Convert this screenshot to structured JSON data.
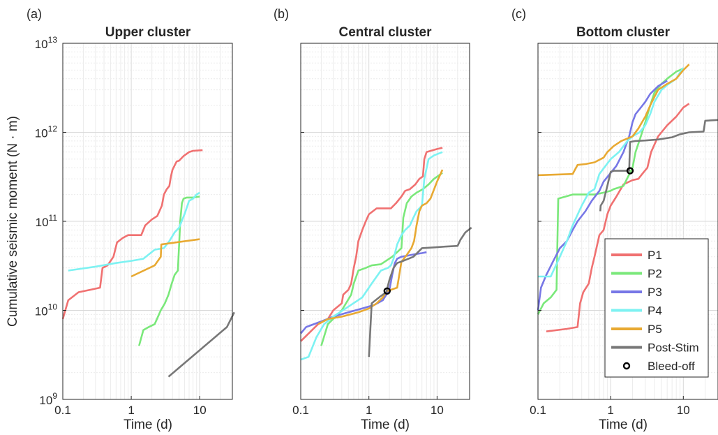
{
  "figure": {
    "ylabel": "Cumulative seismic moment (N · m)"
  },
  "colors": {
    "P1": "#f07171",
    "P2": "#7ae87a",
    "P3": "#7777e6",
    "P4": "#7df2f2",
    "P5": "#e8a932",
    "Post-Stim": "#777777"
  },
  "legend": {
    "position": "bottom-right of panel (c)",
    "items": [
      "P1",
      "P2",
      "P3",
      "P4",
      "P5",
      "Post-Stim",
      "Bleed-off"
    ]
  },
  "chart_data": [
    {
      "type": "line",
      "panel_label": "(a)",
      "title": "Upper cluster",
      "xlabel": "Time (d)",
      "ylabel": "Cumulative seismic moment (N · m)",
      "xscale": "log",
      "yscale": "log",
      "xlim": [
        0.1,
        30
      ],
      "ylim": [
        1000000000.0,
        10000000000000.0
      ],
      "x_ticks": [
        "0.1",
        "1",
        "10"
      ],
      "y_ticks": [
        "10^9",
        "10^10",
        "10^11",
        "10^12",
        "10^13"
      ],
      "grid": true,
      "series": [
        {
          "name": "P1",
          "x": [
            0.1,
            0.12,
            0.17,
            0.25,
            0.35,
            0.38,
            0.45,
            0.55,
            0.62,
            0.75,
            0.9,
            1.4,
            1.6,
            2.0,
            2.4,
            2.8,
            3.0,
            3.3,
            3.6,
            3.8,
            4.0,
            4.6,
            5.0,
            5.8,
            7.0,
            8.0,
            11.0
          ],
          "y": [
            8000000000.0,
            13000000000.0,
            16000000000.0,
            17000000000.0,
            18000000000.0,
            30000000000.0,
            32000000000.0,
            40000000000.0,
            58000000000.0,
            65000000000.0,
            70000000000.0,
            70000000000.0,
            90000000000.0,
            105000000000.0,
            115000000000.0,
            150000000000.0,
            200000000000.0,
            230000000000.0,
            250000000000.0,
            320000000000.0,
            380000000000.0,
            470000000000.0,
            480000000000.0,
            540000000000.0,
            600000000000.0,
            620000000000.0,
            630000000000.0
          ]
        },
        {
          "name": "P2",
          "x": [
            1.3,
            1.5,
            1.8,
            2.2,
            2.7,
            3.1,
            3.5,
            3.9,
            4.3,
            4.8,
            5.2,
            5.5,
            5.8,
            6.5,
            8.0,
            10.0
          ],
          "y": [
            4000000000.0,
            6000000000.0,
            6500000000.0,
            7000000000.0,
            10000000000.0,
            12000000000.0,
            15000000000.0,
            20000000000.0,
            25000000000.0,
            28000000000.0,
            100000000000.0,
            160000000000.0,
            180000000000.0,
            185000000000.0,
            185000000000.0,
            190000000000.0
          ]
        },
        {
          "name": "P4",
          "x": [
            0.12,
            0.3,
            0.6,
            1.0,
            1.5,
            2.2,
            3.0,
            3.6,
            4.3,
            5.0,
            6.0,
            7.0,
            8.0,
            9.0,
            10.0
          ],
          "y": [
            28000000000.0,
            31000000000.0,
            34000000000.0,
            36000000000.0,
            38000000000.0,
            48000000000.0,
            50000000000.0,
            60000000000.0,
            75000000000.0,
            85000000000.0,
            120000000000.0,
            170000000000.0,
            180000000000.0,
            200000000000.0,
            210000000000.0
          ]
        },
        {
          "name": "P5",
          "x": [
            1.0,
            2.2,
            2.7,
            2.75,
            10.0
          ],
          "y": [
            24000000000.0,
            32000000000.0,
            40000000000.0,
            55000000000.0,
            63000000000.0
          ]
        },
        {
          "name": "Post-Stim",
          "x": [
            3.5,
            25.0,
            32.0
          ],
          "y": [
            1800000000.0,
            6500000000.0,
            9500000000.0
          ]
        }
      ]
    },
    {
      "type": "line",
      "panel_label": "(b)",
      "title": "Central cluster",
      "xlabel": "Time (d)",
      "xscale": "log",
      "yscale": "log",
      "xlim": [
        0.1,
        30
      ],
      "ylim": [
        1000000000.0,
        10000000000000.0
      ],
      "x_ticks": [
        "0.1",
        "1",
        "10"
      ],
      "grid": true,
      "series": [
        {
          "name": "P1",
          "x": [
            0.1,
            0.18,
            0.25,
            0.3,
            0.4,
            0.42,
            0.5,
            0.55,
            0.6,
            0.65,
            0.7,
            0.8,
            0.9,
            1.0,
            1.3,
            2.1,
            2.5,
            3.0,
            3.4,
            4.0,
            4.8,
            5.5,
            6.2,
            6.5,
            7.0,
            10.0,
            12.0
          ],
          "y": [
            4500000000.0,
            7000000000.0,
            8000000000.0,
            10000000000.0,
            12000000000.0,
            15000000000.0,
            17000000000.0,
            20000000000.0,
            30000000000.0,
            40000000000.0,
            60000000000.0,
            80000000000.0,
            100000000000.0,
            120000000000.0,
            140000000000.0,
            140000000000.0,
            160000000000.0,
            190000000000.0,
            220000000000.0,
            230000000000.0,
            260000000000.0,
            300000000000.0,
            320000000000.0,
            500000000000.0,
            600000000000.0,
            650000000000.0,
            670000000000.0
          ]
        },
        {
          "name": "P2",
          "x": [
            0.2,
            0.25,
            0.35,
            0.4,
            0.55,
            0.6,
            0.7,
            0.9,
            1.1,
            1.5,
            2.2,
            3.0,
            3.2,
            3.6,
            4.2,
            5.0,
            6.2,
            7.5,
            9.0,
            12.0
          ],
          "y": [
            4000000000.0,
            7000000000.0,
            9000000000.0,
            10000000000.0,
            15000000000.0,
            20000000000.0,
            28000000000.0,
            30000000000.0,
            32000000000.0,
            33000000000.0,
            40000000000.0,
            50000000000.0,
            110000000000.0,
            160000000000.0,
            190000000000.0,
            210000000000.0,
            230000000000.0,
            260000000000.0,
            300000000000.0,
            350000000000.0
          ]
        },
        {
          "name": "P3",
          "x": [
            0.1,
            0.12,
            0.2,
            0.3,
            0.5,
            0.8,
            1.2,
            1.6,
            2.0,
            2.2,
            2.4,
            2.6,
            3.0,
            3.6,
            4.2,
            5.0,
            6.0,
            7.0
          ],
          "y": [
            5500000000.0,
            6500000000.0,
            7500000000.0,
            8500000000.0,
            9500000000.0,
            10500000000.0,
            11500000000.0,
            13000000000.0,
            17000000000.0,
            25000000000.0,
            34000000000.0,
            38000000000.0,
            40000000000.0,
            41000000000.0,
            42000000000.0,
            43000000000.0,
            44000000000.0,
            45000000000.0
          ]
        },
        {
          "name": "P4",
          "x": [
            0.1,
            0.13,
            0.17,
            0.22,
            0.3,
            0.5,
            0.8,
            1.1,
            1.5,
            1.9,
            2.1,
            2.3,
            2.6,
            3.0,
            3.4,
            4.0,
            4.5,
            5.0,
            5.5,
            6.0,
            6.5,
            7.5,
            9.0,
            12.0
          ],
          "y": [
            2800000000.0,
            3000000000.0,
            5000000000.0,
            7000000000.0,
            8500000000.0,
            11000000000.0,
            14000000000.0,
            20000000000.0,
            28000000000.0,
            30000000000.0,
            32000000000.0,
            38000000000.0,
            55000000000.0,
            70000000000.0,
            80000000000.0,
            90000000000.0,
            110000000000.0,
            130000000000.0,
            140000000000.0,
            150000000000.0,
            300000000000.0,
            500000000000.0,
            550000000000.0,
            600000000000.0
          ]
        },
        {
          "name": "P5",
          "x": [
            0.18,
            0.25,
            0.4,
            0.7,
            1.0,
            1.3,
            1.6,
            1.8,
            1.85,
            2.6,
            3.0,
            3.6,
            4.2,
            4.6,
            5.0,
            5.5,
            6.0,
            7.0,
            8.0,
            10.0,
            12.0
          ],
          "y": [
            7000000000.0,
            8000000000.0,
            8500000000.0,
            9500000000.0,
            10500000000.0,
            12000000000.0,
            14000000000.0,
            16000000000.0,
            16500000000.0,
            18000000000.0,
            35000000000.0,
            42000000000.0,
            50000000000.0,
            60000000000.0,
            90000000000.0,
            130000000000.0,
            150000000000.0,
            160000000000.0,
            180000000000.0,
            280000000000.0,
            380000000000.0
          ]
        },
        {
          "name": "Post-Stim",
          "x": [
            1.0,
            1.1,
            1.5,
            1.8,
            2.0,
            2.3,
            2.6,
            3.2,
            4.5,
            6.0,
            9.0,
            13.0,
            20.0,
            22.0,
            26.0,
            32.0
          ],
          "y": [
            3000000000.0,
            12000000000.0,
            14500000000.0,
            16000000000.0,
            22000000000.0,
            30000000000.0,
            34000000000.0,
            36000000000.0,
            40000000000.0,
            50000000000.0,
            51000000000.0,
            52000000000.0,
            53000000000.0,
            62000000000.0,
            75000000000.0,
            85000000000.0
          ]
        }
      ],
      "markers": [
        {
          "name": "Bleed-off",
          "x": 1.85,
          "y": 16500000000.0
        }
      ]
    },
    {
      "type": "line",
      "panel_label": "(c)",
      "title": "Bottom cluster",
      "xlabel": "Time (d)",
      "xscale": "log",
      "yscale": "log",
      "xlim": [
        0.1,
        30
      ],
      "ylim": [
        1000000000.0,
        10000000000000.0
      ],
      "x_ticks": [
        "0.1",
        "1",
        "10"
      ],
      "grid": true,
      "series": [
        {
          "name": "P1",
          "x": [
            0.13,
            0.25,
            0.35,
            0.38,
            0.42,
            0.5,
            0.55,
            0.6,
            0.7,
            0.8,
            0.9,
            1.0,
            1.2,
            1.5,
            2.0,
            2.4,
            2.8,
            3.2,
            3.6,
            4.5,
            6.0,
            8.0,
            10.0,
            12.0
          ],
          "y": [
            5800000000.0,
            6200000000.0,
            6500000000.0,
            12000000000.0,
            16000000000.0,
            20000000000.0,
            30000000000.0,
            40000000000.0,
            70000000000.0,
            80000000000.0,
            120000000000.0,
            150000000000.0,
            190000000000.0,
            260000000000.0,
            290000000000.0,
            300000000000.0,
            350000000000.0,
            400000000000.0,
            600000000000.0,
            900000000000.0,
            1200000000000.0,
            1500000000000.0,
            1900000000000.0,
            2100000000000.0
          ]
        },
        {
          "name": "P2",
          "x": [
            0.1,
            0.12,
            0.15,
            0.18,
            0.19,
            0.3,
            0.6,
            0.8,
            1.0,
            1.1,
            1.3,
            1.5,
            2.0,
            2.2,
            2.6,
            3.0,
            3.5,
            4.0,
            5.0,
            6.0,
            8.0,
            10.0
          ],
          "y": [
            9000000000.0,
            12000000000.0,
            14000000000.0,
            17000000000.0,
            180000000000.0,
            200000000000.0,
            200000000000.0,
            210000000000.0,
            220000000000.0,
            230000000000.0,
            240000000000.0,
            250000000000.0,
            400000000000.0,
            600000000000.0,
            900000000000.0,
            1300000000000.0,
            2000000000000.0,
            2800000000000.0,
            3500000000000.0,
            4000000000000.0,
            4800000000000.0,
            5200000000000.0
          ]
        },
        {
          "name": "P3",
          "x": [
            0.1,
            0.11,
            0.13,
            0.16,
            0.2,
            0.25,
            0.3,
            0.35,
            0.45,
            0.55,
            0.7,
            0.8,
            1.0,
            1.2,
            1.5,
            1.8,
            2.0,
            2.2,
            2.6,
            3.0,
            3.5,
            4.5,
            6.0
          ],
          "y": [
            10000000000.0,
            18000000000.0,
            25000000000.0,
            35000000000.0,
            50000000000.0,
            60000000000.0,
            80000000000.0,
            100000000000.0,
            130000000000.0,
            170000000000.0,
            220000000000.0,
            280000000000.0,
            350000000000.0,
            420000000000.0,
            600000000000.0,
            900000000000.0,
            1300000000000.0,
            1600000000000.0,
            1900000000000.0,
            2200000000000.0,
            2700000000000.0,
            3300000000000.0,
            3800000000000.0
          ]
        },
        {
          "name": "P4",
          "x": [
            0.1,
            0.15,
            0.2,
            0.25,
            0.3,
            0.4,
            0.5,
            0.6,
            0.7,
            1.0,
            1.3,
            1.7,
            2.0,
            2.5,
            3.0,
            3.5,
            4.0,
            5.0,
            6.0,
            8.0,
            9.0,
            10.0
          ],
          "y": [
            24000000000.0,
            24000000000.0,
            40000000000.0,
            60000000000.0,
            90000000000.0,
            150000000000.0,
            210000000000.0,
            230000000000.0,
            340000000000.0,
            500000000000.0,
            600000000000.0,
            800000000000.0,
            900000000000.0,
            1000000000000.0,
            1200000000000.0,
            1600000000000.0,
            2200000000000.0,
            3000000000000.0,
            3400000000000.0,
            4000000000000.0,
            4700000000000.0,
            5300000000000.0
          ]
        },
        {
          "name": "P5",
          "x": [
            0.1,
            0.3,
            0.35,
            0.45,
            0.6,
            0.8,
            0.9,
            1.1,
            1.4,
            2.0,
            2.4,
            3.0,
            3.5,
            4.0,
            4.5,
            6.0,
            8.0,
            10.0,
            12.0
          ],
          "y": [
            330000000000.0,
            340000000000.0,
            430000000000.0,
            440000000000.0,
            460000000000.0,
            520000000000.0,
            600000000000.0,
            700000000000.0,
            800000000000.0,
            900000000000.0,
            1100000000000.0,
            1500000000000.0,
            2000000000000.0,
            2500000000000.0,
            3000000000000.0,
            3500000000000.0,
            4000000000000.0,
            5000000000000.0,
            5800000000000.0
          ]
        },
        {
          "name": "Post-Stim",
          "x": [
            0.72,
            0.73,
            0.8,
            0.9,
            1.0,
            1.1,
            1.3,
            1.5,
            1.8,
            1.85,
            2.2,
            3.0,
            4.5,
            7.0,
            9.0,
            12.0,
            19.0,
            20.0,
            32.0
          ],
          "y": [
            130000000000.0,
            150000000000.0,
            170000000000.0,
            250000000000.0,
            360000000000.0,
            370000000000.0,
            370000000000.0,
            370000000000.0,
            370000000000.0,
            780000000000.0,
            800000000000.0,
            810000000000.0,
            830000000000.0,
            880000000000.0,
            950000000000.0,
            1000000000000.0,
            1020000000000.0,
            1350000000000.0,
            1380000000000.0
          ]
        }
      ],
      "markers": [
        {
          "name": "Bleed-off",
          "x": 1.85,
          "y": 370000000000.0
        }
      ]
    }
  ]
}
